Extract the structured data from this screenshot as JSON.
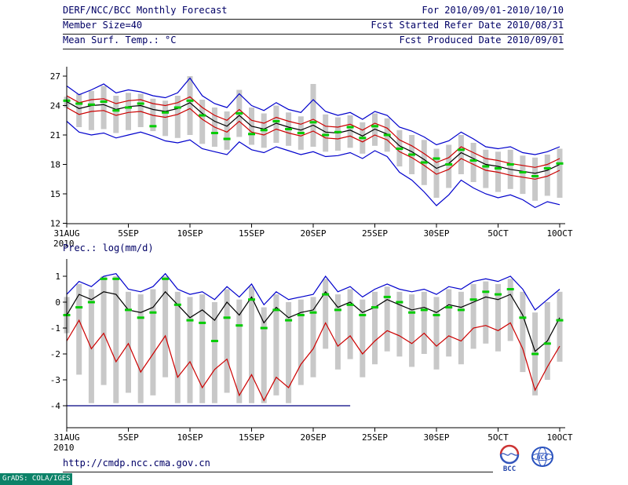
{
  "header": {
    "rows": [
      {
        "left": "DERF/NCC/BCC Monthly Forecast",
        "right": "For 2010/09/01-2010/10/10"
      },
      {
        "left": "Member Size=40",
        "right": "Fcst Started Refer Date 2010/08/31"
      },
      {
        "left": "Mean Surf. Temp.: °C",
        "right": "Fcst Produced Date 2010/09/01"
      }
    ]
  },
  "footer": {
    "url": "http://cmdp.ncc.cma.gov.cn",
    "logos": [
      {
        "label": "BCC"
      },
      {
        "label": "NCC"
      }
    ],
    "credit": "GrADS: COLA/IGES"
  },
  "colors": {
    "header_text": "#000066",
    "axis": "#000000",
    "spread_bar": "#c8c8c8",
    "observation_green": "#00cc00",
    "envelope_blue": "#0000cc",
    "spread_red": "#cc0000",
    "mean_black": "#000000",
    "clip_navy": "#000080",
    "credit_bg": "#0c8268",
    "credit_text": "#ffffff"
  },
  "chart_data": [
    {
      "type": "line",
      "title": "Mean Surf. Temp.: °C",
      "title_visible": false,
      "xlabel": "",
      "ylabel": "°C",
      "year_label": "2010",
      "x_ticklabels": [
        "31AUG",
        "5SEP",
        "10SEP",
        "15SEP",
        "20SEP",
        "25SEP",
        "30SEP",
        "5OCT",
        "10OCT"
      ],
      "x_tick_days": [
        0,
        5,
        10,
        15,
        20,
        25,
        30,
        35,
        40
      ],
      "x_range_days": [
        0,
        40
      ],
      "ylim": [
        12,
        27
      ],
      "yticks": [
        27,
        24,
        21,
        18,
        15,
        12
      ],
      "grid": false,
      "legend": false,
      "bars": {
        "name": "ensemble-member-spread",
        "color": "#c8c8c8",
        "top": [
          24.9,
          25.2,
          25.5,
          26.0,
          25.0,
          25.3,
          25.2,
          24.7,
          24.5,
          25.0,
          27.0,
          24.6,
          23.8,
          23.4,
          25.6,
          23.8,
          23.2,
          24.0,
          23.3,
          22.9,
          26.2,
          23.1,
          22.8,
          23.0,
          22.3,
          23.2,
          22.7,
          21.5,
          21.0,
          20.5,
          19.6,
          20.0,
          21.0,
          20.2,
          19.5,
          19.3,
          19.5,
          18.9,
          18.7,
          19.0,
          19.6
        ],
        "bottom": [
          23.8,
          21.8,
          21.5,
          21.6,
          21.2,
          21.5,
          21.8,
          21.4,
          20.9,
          20.7,
          21.0,
          20.1,
          19.8,
          19.5,
          20.8,
          20.0,
          19.7,
          20.2,
          19.9,
          19.5,
          19.8,
          19.3,
          19.4,
          19.7,
          19.1,
          19.9,
          19.3,
          17.8,
          17.0,
          15.9,
          14.6,
          15.6,
          17.0,
          16.2,
          15.6,
          15.2,
          15.5,
          15.0,
          14.3,
          14.8,
          14.6
        ]
      },
      "markers": {
        "name": "observation-green-dash",
        "color": "#00cc00",
        "values": [
          24.5,
          24.2,
          24.1,
          24.4,
          23.5,
          23.8,
          24.2,
          21.9,
          23.3,
          23.8,
          24.5,
          23.0,
          21.2,
          20.6,
          23.2,
          21.1,
          21.5,
          22.4,
          21.6,
          21.2,
          22.3,
          21.0,
          21.3,
          21.8,
          20.7,
          21.9,
          21.0,
          19.6,
          19.0,
          18.2,
          18.6,
          18.0,
          19.5,
          18.4,
          17.8,
          17.6,
          18.0,
          17.2,
          16.8,
          17.6,
          18.1
        ]
      },
      "series": [
        {
          "name": "ensemble-max",
          "color": "#0000cc",
          "values": [
            26.0,
            25.1,
            25.6,
            26.2,
            25.3,
            25.6,
            25.4,
            25.0,
            24.8,
            25.3,
            26.8,
            25.0,
            24.2,
            23.8,
            25.2,
            24.0,
            23.5,
            24.3,
            23.6,
            23.3,
            24.6,
            23.4,
            23.0,
            23.3,
            22.6,
            23.4,
            23.0,
            21.8,
            21.4,
            20.8,
            20.0,
            20.4,
            21.3,
            20.6,
            19.8,
            19.6,
            19.8,
            19.2,
            19.0,
            19.3,
            19.8
          ]
        },
        {
          "name": "upper-spread",
          "color": "#cc0000",
          "values": [
            25.0,
            24.3,
            24.6,
            24.7,
            24.2,
            24.5,
            24.6,
            24.2,
            24.0,
            24.3,
            24.9,
            23.8,
            23.0,
            22.5,
            23.6,
            22.5,
            22.2,
            22.8,
            22.4,
            22.1,
            22.6,
            21.9,
            21.8,
            22.1,
            21.5,
            22.2,
            21.7,
            20.5,
            19.9,
            19.1,
            18.2,
            18.7,
            19.8,
            19.2,
            18.6,
            18.4,
            18.1,
            17.9,
            17.7,
            18.0,
            18.6
          ]
        },
        {
          "name": "lower-spread",
          "color": "#cc0000",
          "values": [
            23.8,
            23.1,
            23.4,
            23.5,
            23.0,
            23.3,
            23.4,
            23.0,
            22.8,
            23.1,
            23.7,
            22.6,
            21.8,
            21.3,
            22.4,
            21.3,
            21.0,
            21.6,
            21.2,
            20.9,
            21.4,
            20.7,
            20.6,
            20.9,
            20.3,
            21.0,
            20.5,
            19.3,
            18.7,
            17.9,
            17.0,
            17.5,
            18.6,
            18.0,
            17.4,
            17.2,
            16.9,
            16.7,
            16.5,
            16.8,
            17.4
          ]
        },
        {
          "name": "ensemble-min",
          "color": "#0000cc",
          "values": [
            22.4,
            21.3,
            21.0,
            21.2,
            20.7,
            21.0,
            21.3,
            20.9,
            20.4,
            20.2,
            20.5,
            19.6,
            19.3,
            19.0,
            20.3,
            19.5,
            19.2,
            19.8,
            19.4,
            19.0,
            19.3,
            18.8,
            18.9,
            19.2,
            18.6,
            19.4,
            18.8,
            17.2,
            16.4,
            15.2,
            13.8,
            14.9,
            16.4,
            15.6,
            15.0,
            14.6,
            14.9,
            14.4,
            13.6,
            14.2,
            13.9
          ]
        },
        {
          "name": "ensemble-mean",
          "color": "#000000",
          "values": [
            24.4,
            23.7,
            24.0,
            24.1,
            23.6,
            23.9,
            24.0,
            23.6,
            23.4,
            23.7,
            24.3,
            23.2,
            22.4,
            21.9,
            23.0,
            21.9,
            21.6,
            22.2,
            21.8,
            21.5,
            22.0,
            21.3,
            21.2,
            21.5,
            20.9,
            21.6,
            21.1,
            19.9,
            19.3,
            18.5,
            17.6,
            18.1,
            19.2,
            18.6,
            18.0,
            17.8,
            17.5,
            17.3,
            17.1,
            17.4,
            18.0
          ]
        }
      ]
    },
    {
      "type": "line",
      "title": "Prec.: log(mm/d)",
      "title_visible": true,
      "xlabel": "",
      "ylabel": "log(mm/d)",
      "year_label": "2010",
      "x_ticklabels": [
        "31AUG",
        "5SEP",
        "10SEP",
        "15SEP",
        "20SEP",
        "25SEP",
        "30SEP",
        "5OCT",
        "10OCT"
      ],
      "x_tick_days": [
        0,
        5,
        10,
        15,
        20,
        25,
        30,
        35,
        40
      ],
      "x_range_days": [
        0,
        40
      ],
      "ylim": [
        -4,
        1
      ],
      "yticks": [
        1,
        0,
        -1,
        -2,
        -3,
        -4
      ],
      "grid": false,
      "legend": false,
      "baseline": {
        "name": "clip-floor",
        "value": -4,
        "from_day": 0,
        "to_day": 23,
        "color": "#000080"
      },
      "bars": {
        "name": "ensemble-member-spread",
        "color": "#c8c8c8",
        "top": [
          0.2,
          0.7,
          0.5,
          1.0,
          1.0,
          0.4,
          0.3,
          0.5,
          1.0,
          0.4,
          0.2,
          0.3,
          0.0,
          0.5,
          0.1,
          0.6,
          -0.2,
          0.3,
          0.0,
          0.1,
          0.2,
          0.9,
          0.3,
          0.5,
          0.1,
          0.4,
          0.6,
          0.4,
          0.3,
          0.4,
          0.2,
          0.5,
          0.4,
          0.7,
          0.8,
          0.7,
          0.9,
          0.4,
          -0.4,
          0.0,
          0.4
        ],
        "bottom": [
          -1.2,
          -2.8,
          -3.9,
          -3.2,
          -3.9,
          -3.5,
          -3.9,
          -3.6,
          -2.9,
          -3.9,
          -3.9,
          -3.9,
          -3.9,
          -3.5,
          -3.9,
          -3.9,
          -3.9,
          -3.6,
          -3.9,
          -3.2,
          -2.9,
          -1.8,
          -2.6,
          -2.2,
          -2.9,
          -2.4,
          -1.9,
          -2.1,
          -2.5,
          -2.0,
          -2.6,
          -2.1,
          -2.4,
          -1.8,
          -1.6,
          -1.9,
          -1.5,
          -2.7,
          -3.6,
          -3.0,
          -2.3
        ]
      },
      "markers": {
        "name": "observation-green-dash",
        "color": "#00cc00",
        "values": [
          -0.5,
          -0.2,
          0.0,
          0.9,
          0.9,
          -0.3,
          -0.6,
          -0.4,
          0.9,
          -0.1,
          -0.7,
          -0.8,
          -1.5,
          -0.6,
          -0.9,
          0.1,
          -1.0,
          -0.3,
          -0.7,
          -0.5,
          -0.4,
          0.3,
          -0.3,
          -0.1,
          -0.5,
          -0.2,
          0.2,
          0.0,
          -0.4,
          -0.3,
          -0.5,
          -0.2,
          -0.3,
          0.1,
          0.4,
          0.3,
          0.5,
          -0.6,
          -2.0,
          -1.6,
          -0.7
        ]
      },
      "series": [
        {
          "name": "ensemble-max",
          "color": "#0000cc",
          "values": [
            0.3,
            0.8,
            0.6,
            1.0,
            1.1,
            0.5,
            0.4,
            0.6,
            1.1,
            0.5,
            0.3,
            0.4,
            0.1,
            0.6,
            0.2,
            0.7,
            -0.1,
            0.4,
            0.1,
            0.2,
            0.3,
            1.0,
            0.4,
            0.6,
            0.2,
            0.5,
            0.7,
            0.5,
            0.4,
            0.5,
            0.3,
            0.6,
            0.5,
            0.8,
            0.9,
            0.8,
            1.0,
            0.5,
            -0.3,
            0.1,
            0.5
          ]
        },
        {
          "name": "lower-spread",
          "color": "#cc0000",
          "values": [
            -1.5,
            -0.7,
            -1.8,
            -1.2,
            -2.3,
            -1.6,
            -2.7,
            -2.0,
            -1.3,
            -2.9,
            -2.3,
            -3.3,
            -2.6,
            -2.2,
            -3.6,
            -2.8,
            -3.8,
            -2.9,
            -3.3,
            -2.4,
            -1.8,
            -0.8,
            -1.7,
            -1.3,
            -2.0,
            -1.5,
            -1.1,
            -1.3,
            -1.6,
            -1.2,
            -1.7,
            -1.3,
            -1.5,
            -1.0,
            -0.9,
            -1.1,
            -0.8,
            -1.8,
            -3.4,
            -2.5,
            -1.7
          ]
        },
        {
          "name": "ensemble-mean",
          "color": "#000000",
          "values": [
            -0.5,
            0.3,
            0.1,
            0.4,
            0.3,
            -0.3,
            -0.4,
            -0.2,
            0.4,
            -0.1,
            -0.6,
            -0.3,
            -0.7,
            0.0,
            -0.5,
            0.2,
            -0.8,
            -0.2,
            -0.6,
            -0.4,
            -0.3,
            0.4,
            -0.2,
            0.0,
            -0.4,
            -0.2,
            0.1,
            -0.1,
            -0.3,
            -0.2,
            -0.4,
            -0.1,
            -0.2,
            0.0,
            0.2,
            0.1,
            0.3,
            -0.5,
            -1.9,
            -1.5,
            -0.6
          ]
        }
      ]
    }
  ]
}
